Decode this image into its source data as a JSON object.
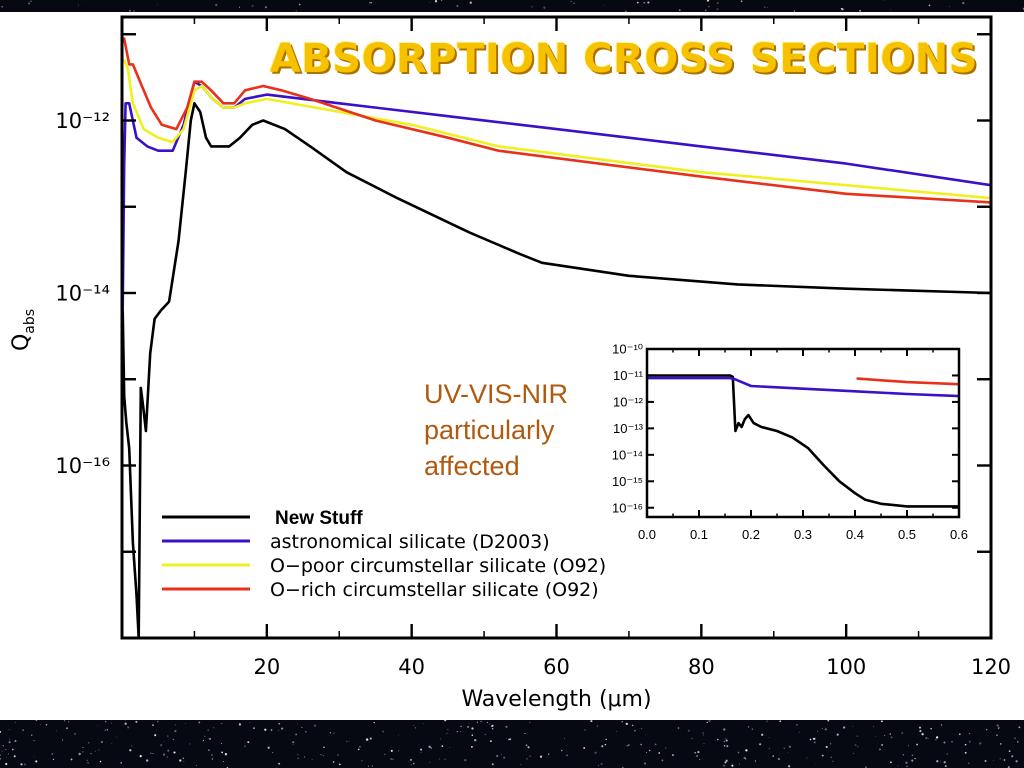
{
  "slide": {
    "title": "ABSORPTION CROSS SECTIONS",
    "note_lines": [
      "UV-VIS-NIR",
      "particularly",
      "affected"
    ]
  },
  "colors": {
    "new_stuff": "#000000",
    "astronomical": "#3a10c8",
    "o_poor": "#f0f020",
    "o_rich": "#e8301a",
    "title": "#f6c200",
    "note": "#b05a10"
  },
  "chart_data": [
    {
      "id": "main",
      "type": "line",
      "xlabel": "Wavelength (μm)",
      "ylabel": "Q_abs",
      "xlim": [
        0,
        120
      ],
      "ylim_log10": [
        -18,
        -10.8
      ],
      "y_scale": "log",
      "x_ticks": [
        20,
        40,
        60,
        80,
        100,
        120
      ],
      "y_ticks": [
        {
          "exp": -12,
          "label": "10⁻¹²"
        },
        {
          "exp": -14,
          "label": "10⁻¹⁴"
        },
        {
          "exp": -16,
          "label": "10⁻¹⁶"
        }
      ],
      "legend_position": "bottom-left",
      "series": [
        {
          "key": "new_stuff",
          "name": "New Stuff",
          "color": "#000000",
          "points": [
            [
              0.1,
              -14.2
            ],
            [
              0.3,
              -15.2
            ],
            [
              0.6,
              -15.5
            ],
            [
              1.0,
              -15.8
            ],
            [
              1.5,
              -16.9
            ],
            [
              2.0,
              -17.5
            ],
            [
              2.3,
              -18.0
            ],
            [
              2.6,
              -15.1
            ],
            [
              2.9,
              -15.3
            ],
            [
              3.3,
              -15.6
            ],
            [
              3.9,
              -14.7
            ],
            [
              4.5,
              -14.3
            ],
            [
              5.4,
              -14.2
            ],
            [
              6.5,
              -14.1
            ],
            [
              7.8,
              -13.4
            ],
            [
              8.8,
              -12.6
            ],
            [
              9.5,
              -12.0
            ],
            [
              10.0,
              -11.8
            ],
            [
              10.8,
              -11.9
            ],
            [
              11.6,
              -12.2
            ],
            [
              12.3,
              -12.3
            ],
            [
              13.0,
              -12.3
            ],
            [
              14.8,
              -12.3
            ],
            [
              16.3,
              -12.2
            ],
            [
              18.0,
              -12.05
            ],
            [
              19.5,
              -12.0
            ],
            [
              22.5,
              -12.1
            ],
            [
              26.0,
              -12.3
            ],
            [
              31.0,
              -12.6
            ],
            [
              38.0,
              -12.9
            ],
            [
              48.0,
              -13.3
            ],
            [
              55.0,
              -13.55
            ],
            [
              58.0,
              -13.65
            ],
            [
              70.0,
              -13.8
            ],
            [
              85.0,
              -13.9
            ],
            [
              100.0,
              -13.95
            ],
            [
              120.0,
              -14.0
            ]
          ]
        },
        {
          "key": "astronomical",
          "name": "astronomical silicate (D2003)",
          "color": "#3a10c8",
          "points": [
            [
              0.1,
              -14.2
            ],
            [
              0.3,
              -12.5
            ],
            [
              0.5,
              -11.8
            ],
            [
              1.0,
              -11.8
            ],
            [
              2.0,
              -12.2
            ],
            [
              3.5,
              -12.3
            ],
            [
              5.0,
              -12.35
            ],
            [
              7.0,
              -12.35
            ],
            [
              8.5,
              -12.05
            ],
            [
              10.0,
              -11.55
            ],
            [
              11.0,
              -11.6
            ],
            [
              12.5,
              -11.75
            ],
            [
              14.0,
              -11.85
            ],
            [
              15.5,
              -11.85
            ],
            [
              17.0,
              -11.75
            ],
            [
              20.0,
              -11.7
            ],
            [
              30.0,
              -11.8
            ],
            [
              45.0,
              -11.95
            ],
            [
              60.0,
              -12.1
            ],
            [
              80.0,
              -12.3
            ],
            [
              100.0,
              -12.5
            ],
            [
              120.0,
              -12.75
            ]
          ]
        },
        {
          "key": "o_poor",
          "name": "O−poor circumstellar silicate (O92)",
          "color": "#f0f020",
          "points": [
            [
              0.3,
              -11.3
            ],
            [
              0.8,
              -11.4
            ],
            [
              1.5,
              -11.8
            ],
            [
              3.0,
              -12.1
            ],
            [
              5.0,
              -12.2
            ],
            [
              7.0,
              -12.25
            ],
            [
              8.5,
              -12.1
            ],
            [
              10.0,
              -11.65
            ],
            [
              11.0,
              -11.6
            ],
            [
              12.5,
              -11.75
            ],
            [
              14.0,
              -11.85
            ],
            [
              15.5,
              -11.85
            ],
            [
              17.0,
              -11.8
            ],
            [
              20.0,
              -11.75
            ],
            [
              30.0,
              -11.9
            ],
            [
              40.0,
              -12.05
            ],
            [
              52.0,
              -12.3
            ],
            [
              80.0,
              -12.6
            ],
            [
              100.0,
              -12.75
            ],
            [
              120.0,
              -12.9
            ]
          ]
        },
        {
          "key": "o_rich",
          "name": "O−rich circumstellar silicate (O92)",
          "color": "#e8301a",
          "points": [
            [
              0.3,
              -11.05
            ],
            [
              1.0,
              -11.35
            ],
            [
              1.5,
              -11.35
            ],
            [
              2.5,
              -11.55
            ],
            [
              4.0,
              -11.85
            ],
            [
              5.5,
              -12.05
            ],
            [
              7.5,
              -12.1
            ],
            [
              9.0,
              -11.85
            ],
            [
              10.0,
              -11.55
            ],
            [
              11.0,
              -11.55
            ],
            [
              12.3,
              -11.65
            ],
            [
              14.0,
              -11.8
            ],
            [
              15.5,
              -11.8
            ],
            [
              17.0,
              -11.65
            ],
            [
              19.5,
              -11.6
            ],
            [
              22.0,
              -11.65
            ],
            [
              26.0,
              -11.75
            ],
            [
              35.0,
              -12.0
            ],
            [
              45.0,
              -12.2
            ],
            [
              52.0,
              -12.35
            ],
            [
              80.0,
              -12.65
            ],
            [
              100.0,
              -12.85
            ],
            [
              120.0,
              -12.95
            ]
          ]
        }
      ]
    },
    {
      "id": "inset",
      "type": "line",
      "xlim": [
        0.0,
        0.6
      ],
      "ylim_log10": [
        -16.35,
        -10.0
      ],
      "y_scale": "log",
      "x_ticks": [
        {
          "v": 0.0,
          "label": "0.0"
        },
        {
          "v": 0.1,
          "label": "0.1"
        },
        {
          "v": 0.2,
          "label": "0.2"
        },
        {
          "v": 0.3,
          "label": "0.3"
        },
        {
          "v": 0.4,
          "label": "0.4"
        },
        {
          "v": 0.5,
          "label": "0.5"
        },
        {
          "v": 0.6,
          "label": "0.6"
        }
      ],
      "y_ticks": [
        {
          "exp": -10,
          "label": "10⁻¹⁰"
        },
        {
          "exp": -11,
          "label": "10⁻¹¹"
        },
        {
          "exp": -12,
          "label": "10⁻¹²"
        },
        {
          "exp": -13,
          "label": "10⁻¹³"
        },
        {
          "exp": -14,
          "label": "10⁻¹⁴"
        },
        {
          "exp": -15,
          "label": "10⁻¹⁵"
        },
        {
          "exp": -16,
          "label": "10⁻¹⁶"
        }
      ],
      "series": [
        {
          "key": "new_stuff",
          "color": "#000000",
          "points": [
            [
              0.0,
              -11.0
            ],
            [
              0.16,
              -11.0
            ],
            [
              0.165,
              -11.05
            ],
            [
              0.17,
              -13.1
            ],
            [
              0.176,
              -12.8
            ],
            [
              0.182,
              -12.95
            ],
            [
              0.188,
              -12.65
            ],
            [
              0.195,
              -12.5
            ],
            [
              0.205,
              -12.8
            ],
            [
              0.22,
              -12.95
            ],
            [
              0.25,
              -13.1
            ],
            [
              0.28,
              -13.35
            ],
            [
              0.31,
              -13.75
            ],
            [
              0.34,
              -14.4
            ],
            [
              0.37,
              -15.0
            ],
            [
              0.4,
              -15.45
            ],
            [
              0.42,
              -15.7
            ],
            [
              0.45,
              -15.85
            ],
            [
              0.5,
              -15.95
            ],
            [
              0.6,
              -15.95
            ]
          ]
        },
        {
          "key": "astronomical",
          "color": "#3a10c8",
          "points": [
            [
              0.0,
              -11.1
            ],
            [
              0.16,
              -11.1
            ],
            [
              0.17,
              -11.15
            ],
            [
              0.2,
              -11.4
            ],
            [
              0.3,
              -11.5
            ],
            [
              0.4,
              -11.6
            ],
            [
              0.5,
              -11.7
            ],
            [
              0.6,
              -11.78
            ]
          ]
        },
        {
          "key": "o_rich",
          "color": "#e8301a",
          "points": [
            [
              0.405,
              -11.12
            ],
            [
              0.5,
              -11.25
            ],
            [
              0.6,
              -11.33
            ]
          ]
        }
      ]
    }
  ]
}
